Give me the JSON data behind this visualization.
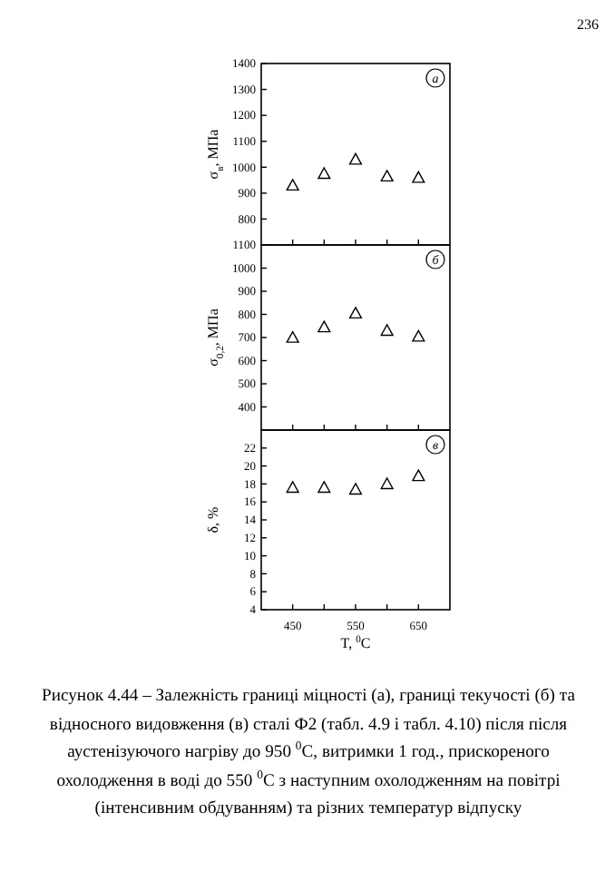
{
  "chart_data": [
    {
      "type": "scatter",
      "ylabel": "σ$_{в}$, МПа",
      "x": [
        450,
        500,
        550,
        600,
        650
      ],
      "values": [
        930,
        975,
        1030,
        965,
        960
      ],
      "color": "#000000",
      "marker": "triangle",
      "xlim": [
        400,
        700
      ],
      "xticks": [
        {
          "value": 450,
          "label": null
        },
        {
          "value": 500,
          "label": null
        },
        {
          "value": 550,
          "label": null
        },
        {
          "value": 600,
          "label": null
        },
        {
          "value": 650,
          "label": null
        }
      ],
      "ylim": [
        700,
        1400
      ],
      "yticks": [
        800,
        900,
        1000,
        1100,
        1200,
        1300,
        1400
      ],
      "tick_labels": "y",
      "grid": false,
      "annotations": [
        "а",
        "236"
      ]
    },
    {
      "type": "scatter",
      "ylabel": "σ$_{0,2}$, МПа",
      "x": [
        450,
        500,
        550,
        600,
        650
      ],
      "values": [
        700,
        745,
        805,
        730,
        705
      ],
      "color": "#000000",
      "marker": "triangle",
      "xlim": [
        400,
        700
      ],
      "xticks": [
        {
          "value": 450,
          "label": null
        },
        {
          "value": 500,
          "label": null
        },
        {
          "value": 550,
          "label": null
        },
        {
          "value": 600,
          "label": null
        },
        {
          "value": 650,
          "label": null
        }
      ],
      "ylim": [
        300,
        1100
      ],
      "yticks": [
        400,
        500,
        600,
        700,
        800,
        900,
        1000,
        1100
      ],
      "tick_labels": "y",
      "grid": false,
      "annotations": [
        "б"
      ]
    },
    {
      "type": "scatter",
      "ylabel": "δ, %",
      "xlabel": "T, $^{0}$C",
      "x": [
        450,
        500,
        550,
        600,
        650
      ],
      "values": [
        17.6,
        17.6,
        17.4,
        18,
        18.9
      ],
      "color": "#000000",
      "marker": "triangle",
      "xlim": [
        400,
        700
      ],
      "xticks": [
        450,
        {
          "value": 500,
          "label": null
        },
        550,
        {
          "value": 600,
          "label": null
        },
        650
      ],
      "ylim": [
        4,
        24
      ],
      "yticks": [
        4,
        6,
        8,
        10,
        12,
        14,
        16,
        18,
        20,
        22
      ],
      "grid": false,
      "annotations": [
        "в",
        "Рисунок 4.44 – Залежність границі міцності (а), границі текучості (б) та відносного видовження (в) сталі Ф2 (табл. 4.9 і табл. 4.10) після після аустенізуючого нагріву до 950 $^{0}$С, витримки 1 год., прискореного охолодження в воді до 550 $^{0}$С з наступним охолодженням на повітрі (інтенсивним обдуванням) та різних температур відпуску"
      ]
    }
  ]
}
